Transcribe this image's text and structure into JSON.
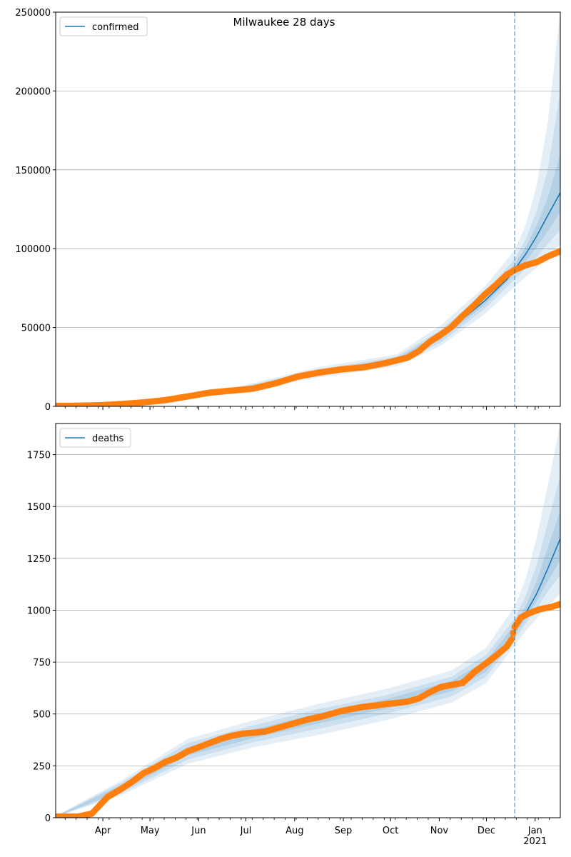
{
  "figure_title": "Milwaukee 28 days",
  "chart_data": [
    {
      "type": "line",
      "panel": "top",
      "legend": [
        "confirmed"
      ],
      "legend_placement": "top-left",
      "grid": "y",
      "ylim": [
        0,
        250000
      ],
      "yticks": [
        0,
        50000,
        100000,
        150000,
        200000,
        250000
      ],
      "ytick_labels": [
        "0",
        "50000",
        "100000",
        "150000",
        "200000",
        "250000"
      ],
      "xlim": [
        "2020-03-02",
        "2021-01-17"
      ],
      "forecast_start": "2020-12-19",
      "observed": {
        "x": [
          "2020-03-02",
          "2020-03-16",
          "2020-03-30",
          "2020-04-13",
          "2020-04-27",
          "2020-05-11",
          "2020-05-25",
          "2020-06-08",
          "2020-06-22",
          "2020-07-06",
          "2020-07-20",
          "2020-08-03",
          "2020-08-17",
          "2020-08-31",
          "2020-09-14",
          "2020-09-28",
          "2020-10-05",
          "2020-10-12",
          "2020-10-19",
          "2020-10-26",
          "2020-11-02",
          "2020-11-09",
          "2020-11-16",
          "2020-11-23",
          "2020-11-30",
          "2020-12-07",
          "2020-12-14",
          "2020-12-19",
          "2020-12-26",
          "2021-01-02",
          "2021-01-09",
          "2021-01-17"
        ],
        "y": [
          300,
          400,
          700,
          1500,
          2500,
          4000,
          6300,
          8700,
          10000,
          11300,
          14700,
          18900,
          21500,
          23500,
          24800,
          27500,
          29200,
          31000,
          35000,
          41000,
          45500,
          50500,
          57500,
          64000,
          71000,
          77000,
          83500,
          86500,
          89500,
          91500,
          95000,
          98500
        ]
      },
      "model": {
        "x": [
          "2020-03-02",
          "2020-03-30",
          "2020-04-27",
          "2020-05-25",
          "2020-06-22",
          "2020-07-20",
          "2020-08-17",
          "2020-09-14",
          "2020-10-05",
          "2020-10-19",
          "2020-11-02",
          "2020-11-16",
          "2020-11-30",
          "2020-12-14",
          "2020-12-19",
          "2020-12-26",
          "2021-01-02",
          "2021-01-09",
          "2021-01-17"
        ],
        "y": [
          300,
          700,
          2500,
          6300,
          10000,
          14700,
          21500,
          24800,
          29200,
          34500,
          44500,
          55500,
          67000,
          80500,
          87000,
          96500,
          108000,
          121000,
          135500
        ]
      },
      "band_outer": {
        "x": [
          "2020-03-02",
          "2020-04-27",
          "2020-06-22",
          "2020-08-17",
          "2020-10-05",
          "2020-11-02",
          "2020-11-30",
          "2020-12-19",
          "2020-12-26",
          "2021-01-02",
          "2021-01-09",
          "2021-01-17"
        ],
        "lower": [
          200,
          2000,
          8500,
          18500,
          25500,
          38500,
          58500,
          76000,
          82000,
          88000,
          95000,
          103000
        ],
        "upper": [
          400,
          3000,
          11500,
          25000,
          33000,
          51500,
          76000,
          99000,
          115000,
          140000,
          180000,
          250000
        ]
      },
      "band_middle": {
        "x": [
          "2020-03-02",
          "2020-04-27",
          "2020-06-22",
          "2020-08-17",
          "2020-10-05",
          "2020-11-02",
          "2020-11-30",
          "2020-12-19",
          "2020-12-26",
          "2021-01-02",
          "2021-01-09",
          "2021-01-17"
        ],
        "lower": [
          250,
          2200,
          9000,
          19500,
          26800,
          40500,
          62000,
          80500,
          87500,
          94500,
          103000,
          112000
        ],
        "upper": [
          350,
          2800,
          11000,
          23500,
          31500,
          48500,
          72000,
          93500,
          106000,
          124000,
          150000,
          200000
        ]
      },
      "band_inner": {
        "x": [
          "2020-03-02",
          "2020-04-27",
          "2020-06-22",
          "2020-08-17",
          "2020-10-05",
          "2020-11-02",
          "2020-11-30",
          "2020-12-19",
          "2020-12-26",
          "2021-01-02",
          "2021-01-09",
          "2021-01-17"
        ],
        "lower": [
          280,
          2350,
          9500,
          20500,
          27800,
          42500,
          64500,
          84000,
          92000,
          101000,
          111000,
          123000
        ],
        "upper": [
          320,
          2650,
          10500,
          22500,
          30500,
          46500,
          69500,
          90000,
          101000,
          115000,
          132000,
          160000
        ]
      },
      "colors": {
        "model": "#1f77b4",
        "observed": "#ff7f0e",
        "band": "#1f77b4",
        "vline": "#1f77b4"
      }
    },
    {
      "type": "line",
      "panel": "bottom",
      "legend": [
        "deaths"
      ],
      "legend_placement": "top-left",
      "grid": "y",
      "ylim": [
        0,
        1900
      ],
      "yticks": [
        0,
        250,
        500,
        750,
        1000,
        1250,
        1500,
        1750
      ],
      "ytick_labels": [
        "0",
        "250",
        "500",
        "750",
        "1000",
        "1250",
        "1500",
        "1750"
      ],
      "xlim": [
        "2020-03-02",
        "2021-01-17"
      ],
      "xtick_labels": [
        "Apr",
        "May",
        "Jun",
        "Jul",
        "Aug",
        "Sep",
        "Oct",
        "Nov",
        "Dec",
        "Jan"
      ],
      "xtick_dates": [
        "2020-04-01",
        "2020-05-01",
        "2020-06-01",
        "2020-07-01",
        "2020-08-01",
        "2020-09-01",
        "2020-10-01",
        "2020-11-01",
        "2020-12-01",
        "2021-01-01"
      ],
      "year_label": "2021",
      "forecast_start": "2020-12-19",
      "observed": {
        "x": [
          "2020-03-02",
          "2020-03-16",
          "2020-03-25",
          "2020-03-30",
          "2020-04-04",
          "2020-04-13",
          "2020-04-20",
          "2020-04-27",
          "2020-05-04",
          "2020-05-11",
          "2020-05-18",
          "2020-05-25",
          "2020-06-01",
          "2020-06-08",
          "2020-06-15",
          "2020-06-22",
          "2020-06-29",
          "2020-07-06",
          "2020-07-13",
          "2020-07-20",
          "2020-07-27",
          "2020-08-03",
          "2020-08-10",
          "2020-08-17",
          "2020-08-24",
          "2020-08-31",
          "2020-09-07",
          "2020-09-14",
          "2020-09-21",
          "2020-09-28",
          "2020-10-05",
          "2020-10-12",
          "2020-10-19",
          "2020-10-26",
          "2020-11-02",
          "2020-11-09",
          "2020-11-16",
          "2020-11-23",
          "2020-11-30",
          "2020-12-07",
          "2020-12-14",
          "2020-12-17",
          "2020-12-19",
          "2020-12-23",
          "2020-12-28",
          "2021-01-04",
          "2021-01-11",
          "2021-01-17"
        ],
        "y": [
          5,
          5,
          20,
          60,
          100,
          140,
          175,
          215,
          240,
          270,
          290,
          320,
          340,
          360,
          380,
          395,
          405,
          410,
          415,
          430,
          445,
          460,
          475,
          485,
          500,
          515,
          525,
          535,
          540,
          548,
          553,
          560,
          575,
          605,
          630,
          640,
          650,
          700,
          740,
          780,
          825,
          860,
          920,
          965,
          985,
          1005,
          1015,
          1030
        ]
      },
      "model": {
        "x": [
          "2020-03-02",
          "2020-03-25",
          "2020-04-13",
          "2020-05-04",
          "2020-05-25",
          "2020-06-15",
          "2020-07-06",
          "2020-07-27",
          "2020-08-17",
          "2020-09-07",
          "2020-09-28",
          "2020-10-19",
          "2020-11-09",
          "2020-11-30",
          "2020-12-14",
          "2020-12-19",
          "2020-12-26",
          "2021-01-02",
          "2021-01-09",
          "2021-01-17"
        ],
        "y": [
          5,
          20,
          145,
          245,
          320,
          375,
          405,
          440,
          480,
          515,
          548,
          578,
          635,
          730,
          835,
          900,
          985,
          1080,
          1200,
          1345
        ]
      },
      "band_outer": {
        "x": [
          "2020-03-02",
          "2020-04-13",
          "2020-05-25",
          "2020-07-06",
          "2020-08-17",
          "2020-09-28",
          "2020-11-09",
          "2020-12-01",
          "2020-12-19",
          "2020-12-26",
          "2021-01-02",
          "2021-01-09",
          "2021-01-17"
        ],
        "lower": [
          3,
          110,
          260,
          340,
          400,
          470,
          555,
          650,
          830,
          900,
          960,
          1020,
          1080
        ],
        "upper": [
          8,
          180,
          380,
          470,
          550,
          620,
          710,
          820,
          1020,
          1150,
          1350,
          1600,
          1900
        ]
      },
      "band_middle": {
        "x": [
          "2020-03-02",
          "2020-04-13",
          "2020-05-25",
          "2020-07-06",
          "2020-08-17",
          "2020-09-28",
          "2020-11-09",
          "2020-12-01",
          "2020-12-19",
          "2020-12-26",
          "2021-01-02",
          "2021-01-09",
          "2021-01-17"
        ],
        "lower": [
          4,
          120,
          280,
          365,
          430,
          500,
          585,
          680,
          860,
          935,
          1010,
          1090,
          1170
        ],
        "upper": [
          7,
          170,
          360,
          445,
          525,
          590,
          680,
          785,
          960,
          1070,
          1220,
          1420,
          1650
        ]
      },
      "band_inner": {
        "x": [
          "2020-03-02",
          "2020-04-13",
          "2020-05-25",
          "2020-07-06",
          "2020-08-17",
          "2020-09-28",
          "2020-11-09",
          "2020-12-01",
          "2020-12-19",
          "2020-12-26",
          "2021-01-02",
          "2021-01-09",
          "2021-01-17"
        ],
        "lower": [
          4,
          130,
          300,
          385,
          455,
          525,
          610,
          705,
          880,
          960,
          1045,
          1140,
          1240
        ],
        "upper": [
          6,
          160,
          340,
          425,
          505,
          570,
          660,
          760,
          930,
          1020,
          1140,
          1300,
          1480
        ]
      },
      "colors": {
        "model": "#1f77b4",
        "observed": "#ff7f0e",
        "band": "#1f77b4",
        "vline": "#1f77b4"
      }
    }
  ]
}
